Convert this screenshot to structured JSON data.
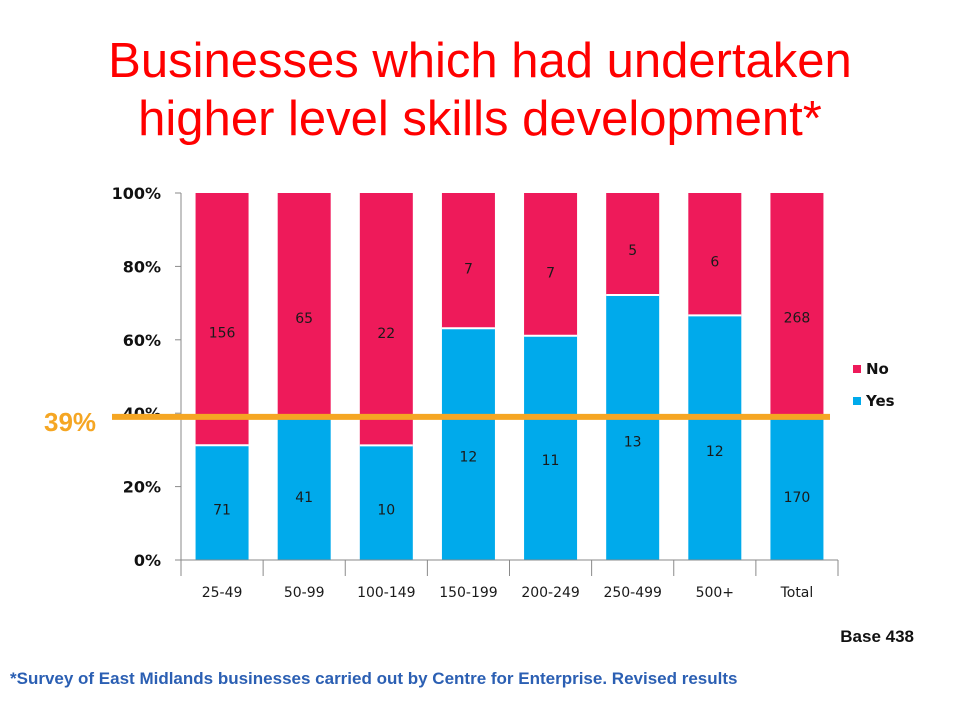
{
  "title_lines": [
    "Businesses which had undertaken",
    "higher level skills development*"
  ],
  "base_note": "Base 438",
  "footnote": "*Survey of East Midlands businesses carried out by Centre for Enterprise. Revised results",
  "colors": {
    "title": "#ff0000",
    "no": "#ee1a5a",
    "yes": "#00aaeb",
    "reference_line": "#f5a623",
    "footnote": "#2b5fb3"
  },
  "chart_data": {
    "type": "bar",
    "stacked": "percent",
    "categories": [
      "25-49",
      "50-99",
      "100-149",
      "150-199",
      "200-249",
      "250-499",
      "500+",
      "Total"
    ],
    "series": [
      {
        "name": "Yes",
        "values": [
          71,
          41,
          10,
          12,
          11,
          13,
          12,
          170
        ]
      },
      {
        "name": "No",
        "values": [
          156,
          65,
          22,
          7,
          7,
          5,
          6,
          268
        ]
      }
    ],
    "yticks": [
      "0%",
      "20%",
      "40%",
      "60%",
      "80%",
      "100%"
    ],
    "ylim": [
      0,
      100
    ],
    "legend": [
      "No",
      "Yes"
    ],
    "legend_position": "right",
    "reference_line": {
      "value": 39,
      "label": "39%"
    },
    "grid": false
  }
}
